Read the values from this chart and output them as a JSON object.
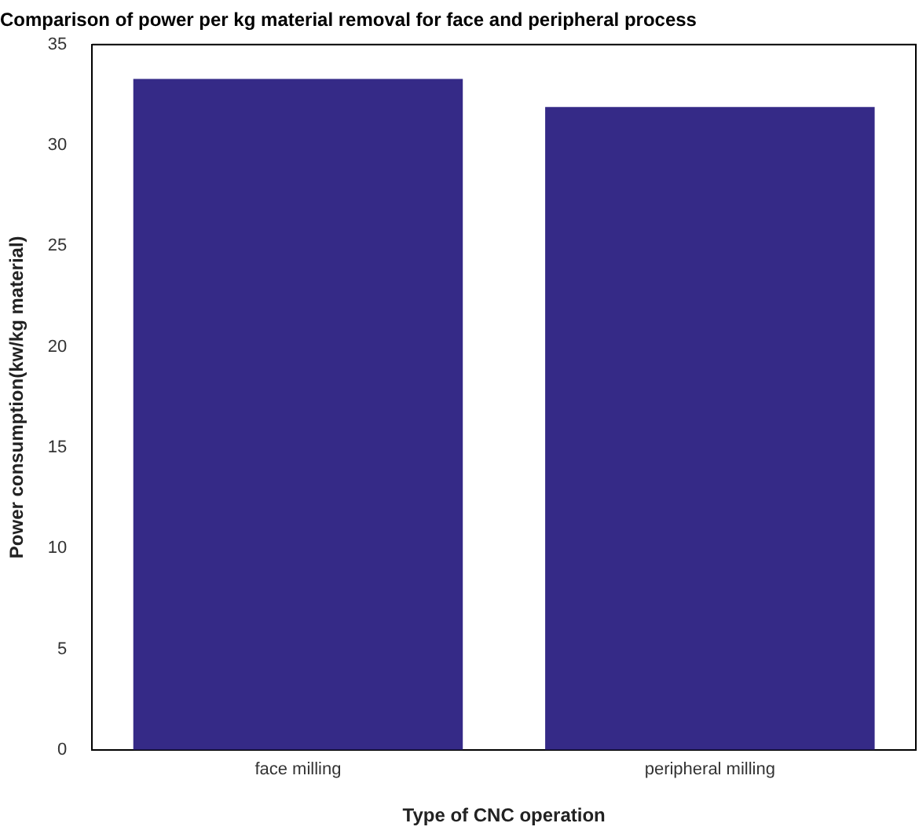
{
  "chart_data": {
    "type": "bar",
    "title": "Comparison of power per kg material removal for face and peripheral process",
    "xlabel": "Type of CNC operation",
    "ylabel": "Power consumption(kw/kg material)",
    "categories": [
      "face milling",
      "peripheral milling"
    ],
    "values": [
      33.3,
      31.9
    ],
    "color": "#352a87",
    "ylim": [
      0,
      35
    ],
    "yticks": [
      0,
      5,
      10,
      15,
      20,
      25,
      30,
      35
    ],
    "grid": false,
    "legend": false
  }
}
